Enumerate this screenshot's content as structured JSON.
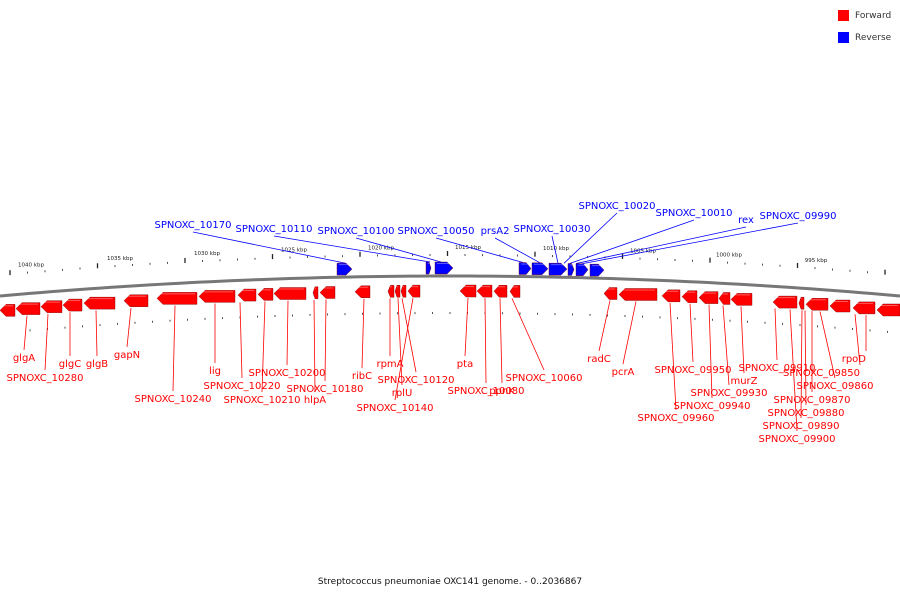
{
  "legend": {
    "forward_label": "Forward",
    "reverse_label": "Reverse",
    "forward_color": "#ff0000",
    "reverse_color": "#0000ff"
  },
  "caption": "Streptococcus pneumoniae OXC141 genome. - 0..2036867",
  "ruler_labels": [
    "1040 kbp",
    "1035 kbp",
    "1030 kbp",
    "1025 kbp",
    "1020 kbp",
    "1015 kbp",
    "1010 kbp",
    "1005 kbp",
    "1000 kbp",
    "995 kbp"
  ],
  "reverse_labels": [
    "SPNOXC_10170",
    "SPNOXC_10110",
    "SPNOXC_10100",
    "SPNOXC_10050",
    "prsA2",
    "SPNOXC_10030",
    "SPNOXC_10020",
    "SPNOXC_10010",
    "rex",
    "SPNOXC_09990"
  ],
  "forward_labels": [
    "glgA",
    "SPNOXC_10280",
    "glgC",
    "glgB",
    "gapN",
    "SPNOXC_10240",
    "lig",
    "SPNOXC_10220",
    "SPNOXC_10210",
    "SPNOXC_10200",
    "SPNOXC_10180",
    "hlpA",
    "ribC",
    "rpmA",
    "rplU",
    "SPNOXC_10120",
    "SPNOXC_10140",
    "pta",
    "SPNOXC_10080",
    "ppnK",
    "SPNOXC_10060",
    "radC",
    "pcrA",
    "SPNOXC_09960",
    "SPNOXC_09950",
    "SPNOXC_09940",
    "SPNOXC_09930",
    "murZ",
    "SPNOXC_09910",
    "SPNOXC_09900",
    "SPNOXC_09890",
    "SPNOXC_09880",
    "SPNOXC_09870",
    "SPNOXC_09860",
    "SPNOXC_09850",
    "rpoD"
  ]
}
